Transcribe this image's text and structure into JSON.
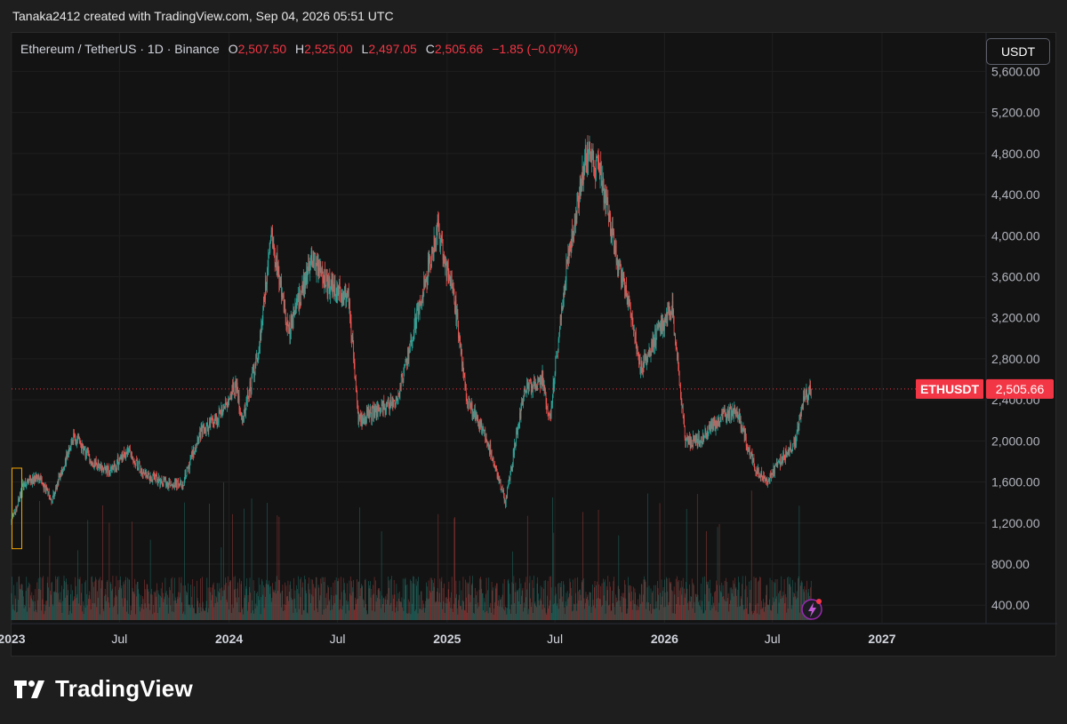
{
  "credit": "Tanaka2412 created with TradingView.com, Sep 04, 2026 05:51 UTC",
  "legend": {
    "symbol": "Ethereum / TetherUS · 1D · Binance",
    "o_label": "O",
    "o_value": "2,507.50",
    "h_label": "H",
    "h_value": "2,525.00",
    "l_label": "L",
    "l_value": "2,497.05",
    "c_label": "C",
    "c_value": "2,505.66",
    "change": "−1.85 (−0.07%)"
  },
  "currency_button": "USDT",
  "price_tag": {
    "symbol": "ETHUSDT",
    "value": "2,505.66",
    "color": "#f23645"
  },
  "brand": "TradingView",
  "icons": {
    "logo": "tradingview-logo-icon",
    "alert": "lightning-alert-icon"
  },
  "colors": {
    "up": "#26a69a",
    "down": "#ef5350",
    "background": "#131313",
    "last_price": "#f23645"
  },
  "chart_data": {
    "type": "candlestick",
    "symbol": "ETHUSDT",
    "interval": "1D",
    "yaxis_ticks": [
      "5,600.00",
      "5,200.00",
      "4,800.00",
      "4,400.00",
      "4,000.00",
      "3,600.00",
      "3,200.00",
      "2,800.00",
      "2,400.00",
      "2,000.00",
      "1,600.00",
      "1,200.00",
      "800.00",
      "400.00"
    ],
    "xaxis_ticks": [
      "2023",
      "Jul",
      "2024",
      "Jul",
      "2025",
      "Jul",
      "2026",
      "Jul",
      "2027"
    ],
    "ylim": [
      220,
      5820
    ],
    "last_price": 2505.66,
    "volume": true,
    "path": [
      [
        "2023-01-01",
        1200
      ],
      [
        "2023-01-20",
        1560
      ],
      [
        "2023-02-15",
        1650
      ],
      [
        "2023-03-10",
        1420
      ],
      [
        "2023-04-15",
        2050
      ],
      [
        "2023-05-15",
        1800
      ],
      [
        "2023-06-15",
        1700
      ],
      [
        "2023-07-15",
        1900
      ],
      [
        "2023-08-18",
        1650
      ],
      [
        "2023-09-15",
        1600
      ],
      [
        "2023-10-15",
        1570
      ],
      [
        "2023-11-10",
        2050
      ],
      [
        "2023-12-15",
        2250
      ],
      [
        "2024-01-12",
        2550
      ],
      [
        "2024-01-24",
        2200
      ],
      [
        "2024-02-20",
        2900
      ],
      [
        "2024-03-12",
        4050
      ],
      [
        "2024-04-10",
        3050
      ],
      [
        "2024-05-20",
        3800
      ],
      [
        "2024-06-15",
        3500
      ],
      [
        "2024-07-20",
        3400
      ],
      [
        "2024-08-05",
        2200
      ],
      [
        "2024-09-06",
        2300
      ],
      [
        "2024-10-10",
        2400
      ],
      [
        "2024-11-10",
        3200
      ],
      [
        "2024-12-16",
        4050
      ],
      [
        "2025-01-15",
        3300
      ],
      [
        "2025-02-03",
        2400
      ],
      [
        "2025-03-10",
        2000
      ],
      [
        "2025-04-09",
        1400
      ],
      [
        "2025-05-10",
        2500
      ],
      [
        "2025-06-10",
        2600
      ],
      [
        "2025-06-22",
        2200
      ],
      [
        "2025-07-20",
        3700
      ],
      [
        "2025-08-22",
        4800
      ],
      [
        "2025-09-15",
        4600
      ],
      [
        "2025-10-11",
        3800
      ],
      [
        "2025-11-04",
        3300
      ],
      [
        "2025-11-21",
        2700
      ],
      [
        "2025-12-15",
        3000
      ],
      [
        "2026-01-14",
        3300
      ],
      [
        "2026-02-05",
        2000
      ],
      [
        "2026-03-01",
        2000
      ],
      [
        "2026-04-01",
        2200
      ],
      [
        "2026-05-01",
        2300
      ],
      [
        "2026-06-01",
        1750
      ],
      [
        "2026-06-20",
        1600
      ],
      [
        "2026-07-20",
        1850
      ],
      [
        "2026-08-10",
        2000
      ],
      [
        "2026-08-20",
        2400
      ],
      [
        "2026-09-04",
        2505.66
      ]
    ]
  }
}
